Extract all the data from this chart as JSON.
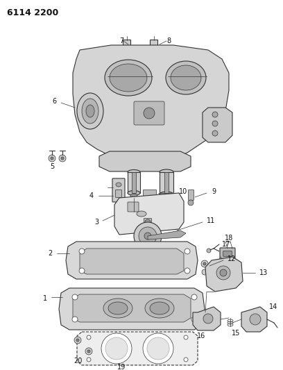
{
  "title": "6114 2200",
  "bg_color": "#ffffff",
  "lc": "#333333",
  "lc2": "#555555",
  "fc_body": "#d8d8d8",
  "fc_light": "#e8e8e8",
  "fc_dark": "#b8b8b8",
  "fc_white": "#ffffff",
  "fig_width": 4.08,
  "fig_height": 5.33,
  "dpi": 100,
  "label_fs": 7,
  "title_fs": 9
}
